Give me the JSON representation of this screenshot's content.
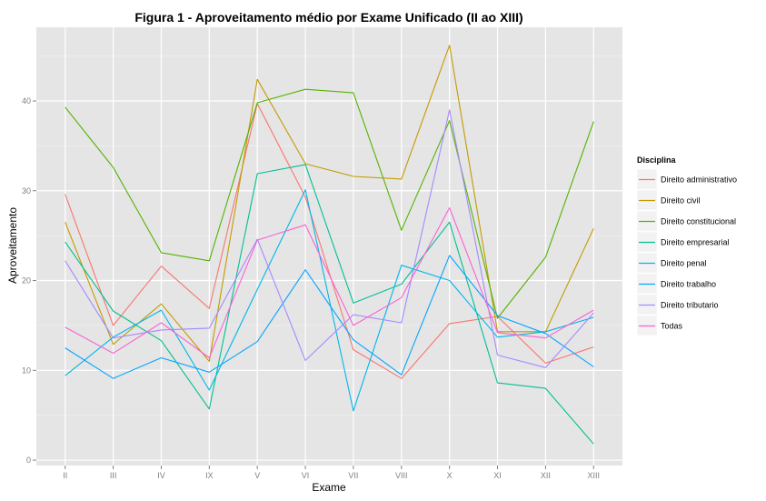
{
  "chart_data": {
    "type": "line",
    "title": "Figura 1 - Aproveitamento médio por Exame Unificado (II ao XIII)",
    "xlabel": "Exame",
    "ylabel": "Aproveitamento",
    "categories": [
      "II",
      "III",
      "IV",
      "IX",
      "V",
      "VI",
      "VII",
      "VIII",
      "X",
      "XI",
      "XII",
      "XIII"
    ],
    "ylim": [
      -0.6,
      48.2
    ],
    "yticks": [
      0,
      10,
      20,
      30,
      40
    ],
    "grid": true,
    "legend_title": "Disciplina",
    "legend_position": "right",
    "series": [
      {
        "name": "Direito administrativo",
        "color": "#F8766D",
        "values": [
          29.6,
          15.0,
          21.6,
          16.9,
          39.7,
          29.3,
          12.3,
          9.1,
          15.2,
          16.0,
          10.8,
          12.6
        ]
      },
      {
        "name": "Direito civil",
        "color": "#C49A00",
        "values": [
          26.5,
          12.9,
          17.4,
          11.0,
          42.4,
          33.0,
          31.6,
          31.3,
          46.2,
          14.3,
          14.3,
          25.8
        ]
      },
      {
        "name": "Direito constitucional",
        "color": "#53B400",
        "values": [
          39.3,
          32.6,
          23.1,
          22.2,
          39.8,
          41.3,
          40.9,
          25.6,
          37.8,
          15.8,
          22.6,
          37.7
        ]
      },
      {
        "name": "Direito empresarial",
        "color": "#00C094",
        "values": [
          24.3,
          16.6,
          13.3,
          5.7,
          31.9,
          32.9,
          17.5,
          19.6,
          26.5,
          8.6,
          8.0,
          1.8
        ]
      },
      {
        "name": "Direito penal",
        "color": "#00B6EB",
        "values": [
          9.4,
          13.7,
          16.7,
          7.8,
          19.0,
          30.1,
          5.5,
          21.7,
          20.0,
          13.7,
          14.3,
          15.9
        ]
      },
      {
        "name": "Direito trabalho",
        "color": "#06A4FF",
        "values": [
          12.5,
          9.1,
          11.4,
          9.8,
          13.2,
          21.2,
          13.4,
          9.5,
          22.8,
          16.1,
          14.1,
          10.4
        ]
      },
      {
        "name": "Direito tributario",
        "color": "#A58AFF",
        "values": [
          22.2,
          13.6,
          14.5,
          14.7,
          24.6,
          11.1,
          16.2,
          15.3,
          39.0,
          11.7,
          10.3,
          16.4
        ]
      },
      {
        "name": "Todas",
        "color": "#FB61D7",
        "values": [
          14.8,
          11.9,
          15.3,
          11.4,
          24.5,
          26.2,
          15.0,
          18.1,
          28.1,
          14.2,
          13.6,
          16.7
        ]
      }
    ],
    "panel_background": "#E5E5E5",
    "grid_color": "#FFFFFF"
  }
}
